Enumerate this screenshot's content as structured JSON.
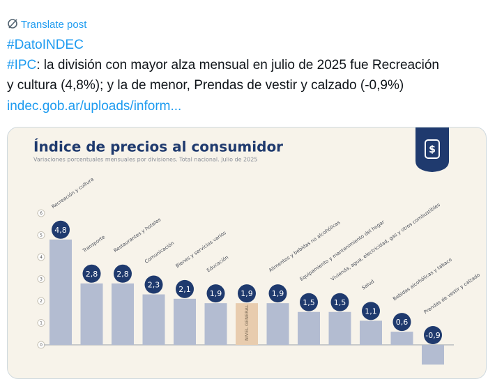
{
  "post": {
    "translate": "Translate post",
    "hashtag1": "#DatoINDEC",
    "hashtag2": "#IPC",
    "text_1": ": la división con mayor alza mensual en julio de 2025 fue Recreación",
    "text_2": "y cultura (4,8%); y la de menor, Prendas de vestir y calzado (-0,9%)",
    "link": "indec.gob.ar/uploads/inform..."
  },
  "chart_data": {
    "type": "bar",
    "title": "Índice de precios al consumidor",
    "subtitle": "Variaciones porcentuales mensuales por divisiones. Total nacional. Julio de 2025",
    "categories": [
      "Recreación y cultura",
      "Transporte",
      "Restaurantes y hoteles",
      "Comunicación",
      "Bienes y servicios varios",
      "Educación",
      "NIVEL GENERAL",
      "Alimentos y bebidas no alcohólicas",
      "Equipamiento y mantenimiento del hogar",
      "Vivienda, agua, electricidad, gas y otros combustibles",
      "Salud",
      "Bebidas alcohólicas y tabaco",
      "Prendas de vestir y calzado"
    ],
    "values": [
      4.8,
      2.8,
      2.8,
      2.3,
      2.1,
      1.9,
      1.9,
      1.9,
      1.5,
      1.5,
      1.1,
      0.6,
      -0.9
    ],
    "value_labels": [
      "4,8",
      "2,8",
      "2,8",
      "2,3",
      "2,1",
      "1,9",
      "1,9",
      "1,9",
      "1,5",
      "1,5",
      "1,1",
      "0,6",
      "-0,9"
    ],
    "colors": [
      "#b3bcd1",
      "#b3bcd1",
      "#b3bcd1",
      "#b3bcd1",
      "#b3bcd1",
      "#b3bcd1",
      "#e8ccae",
      "#b3bcd1",
      "#b3bcd1",
      "#b3bcd1",
      "#b3bcd1",
      "#b3bcd1",
      "#b3bcd1"
    ],
    "highlight_index": 6,
    "ylim": [
      -1,
      6
    ],
    "yticks": [
      0,
      1,
      2,
      3,
      4,
      5,
      6
    ]
  }
}
